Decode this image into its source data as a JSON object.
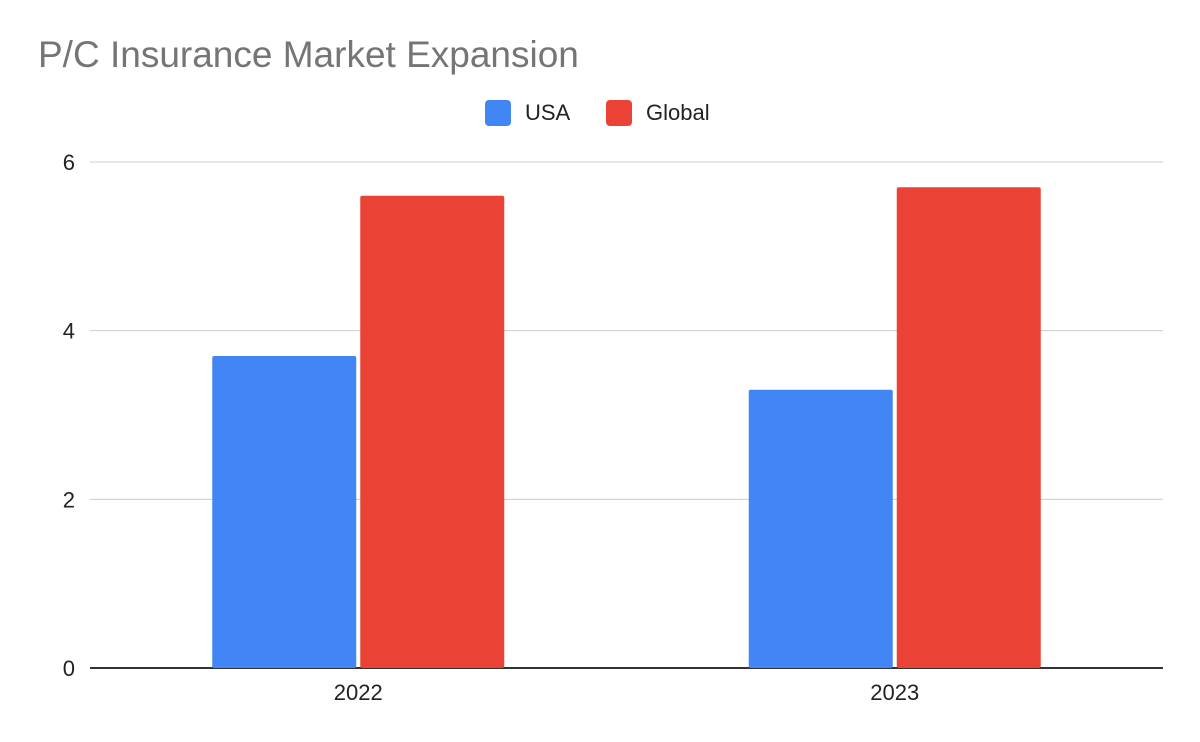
{
  "chart_data": {
    "type": "bar",
    "title": "P/C Insurance Market Expansion",
    "xlabel": "",
    "ylabel": "",
    "categories": [
      "2022",
      "2023"
    ],
    "series": [
      {
        "name": "USA",
        "values": [
          3.7,
          3.3
        ]
      },
      {
        "name": "Global",
        "values": [
          5.6,
          5.7
        ]
      }
    ],
    "ylim": [
      0,
      6
    ],
    "yticks": [
      "0",
      "2",
      "4",
      "6"
    ],
    "grid": true,
    "legend": "top-center"
  },
  "colors": {
    "usa": "#4285f4",
    "global": "#ea4335",
    "grid": "#cccccc",
    "axis": "#333333"
  }
}
